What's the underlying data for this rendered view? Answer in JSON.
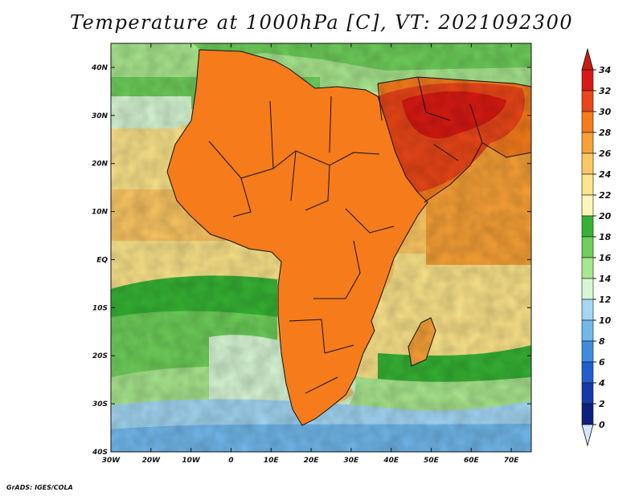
{
  "title": "Temperature at 1000hPa [C], VT: 2021092300",
  "credit": "GrADS: IGES/COLA",
  "map": {
    "region": "Africa and Arabian Peninsula",
    "lon_range": [
      -30,
      75
    ],
    "lat_range": [
      -40,
      45
    ],
    "lat_labels": [
      "40N",
      "30N",
      "20N",
      "10N",
      "EQ",
      "10S",
      "20S",
      "30S",
      "40S"
    ],
    "lon_labels": [
      "30W",
      "20W",
      "10W",
      "0",
      "10E",
      "20E",
      "30E",
      "40E",
      "50E",
      "60E",
      "70E"
    ]
  },
  "colorbar": {
    "labels": [
      "34",
      "32",
      "30",
      "28",
      "26",
      "24",
      "22",
      "20",
      "18",
      "16",
      "14",
      "12",
      "10",
      "8",
      "6",
      "4",
      "2",
      "0"
    ],
    "colors": [
      "#d81a12",
      "#ea4618",
      "#f57b1b",
      "#f8a136",
      "#fcc763",
      "#fbe48a",
      "#fdf6b8",
      "#36b334",
      "#6ecf5a",
      "#a9e78e",
      "#d7f7d4",
      "#a3d7f4",
      "#71b8ec",
      "#3e8ee0",
      "#1f60cc",
      "#1539a8",
      "#0d1f80",
      "#0a0f5e"
    ],
    "over_color": "#c71d10",
    "under_color": "#d7e4fb"
  }
}
